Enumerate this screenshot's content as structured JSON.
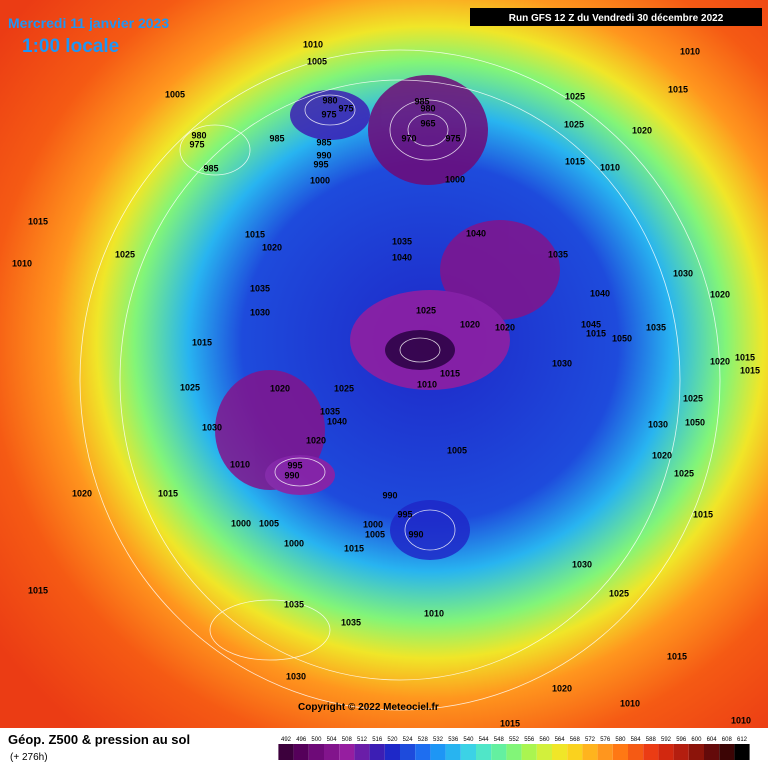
{
  "header": {
    "date": "Mercredi 11 janvier 2023",
    "time": "1:00 locale",
    "run": "Run GFS 12 Z du Vendredi 30 décembre 2022"
  },
  "footer": {
    "title": "Géop. Z500 & pression au sol",
    "lead": "(+ 276h)",
    "copyright": "Copyright © 2022 Meteociel.fr"
  },
  "scale": {
    "values": [
      492,
      496,
      500,
      504,
      508,
      512,
      516,
      520,
      524,
      528,
      532,
      536,
      540,
      544,
      548,
      552,
      556,
      560,
      564,
      568,
      572,
      576,
      580,
      584,
      588,
      592,
      596,
      600,
      604,
      608,
      612
    ],
    "colors": [
      "#3c003c",
      "#55005a",
      "#6e0a78",
      "#82148c",
      "#961ea0",
      "#6a1ea8",
      "#3c1eb4",
      "#1e28c8",
      "#1e4bdc",
      "#1e6ef0",
      "#1e96f5",
      "#28b4f0",
      "#3cd2e6",
      "#50e6c8",
      "#64f0a0",
      "#82f578",
      "#aaf550",
      "#d2f03c",
      "#f0e628",
      "#fad21e",
      "#ffb41e",
      "#ff961e",
      "#ff7814",
      "#f55a14",
      "#eb3c14",
      "#d2280f",
      "#b41e0f",
      "#8c140a",
      "#640a0a",
      "#3c0505",
      "#000000"
    ]
  },
  "isobar_labels": [
    1010,
    1005,
    1010,
    1015,
    1005,
    980,
    975,
    975,
    985,
    980,
    965,
    970,
    975,
    1025,
    1025,
    1020,
    980,
    975,
    985,
    985,
    990,
    995,
    985,
    1000,
    1000,
    1015,
    1010,
    1015,
    1010,
    1025,
    1015,
    1020,
    1035,
    1040,
    1040,
    1035,
    1030,
    1035,
    1030,
    1040,
    1020,
    1025,
    1020,
    1020,
    1035,
    1045,
    1015,
    1050,
    1015,
    1015,
    1010,
    1030,
    1020,
    1015,
    1015,
    1025,
    1020,
    1025,
    1035,
    1040,
    1030,
    1020,
    1030,
    1050,
    1025,
    1005,
    1020,
    1010,
    995,
    990,
    1025,
    1020,
    1015,
    990,
    995,
    1000,
    1005,
    1000,
    1005,
    990,
    1015,
    1000,
    1015,
    1030,
    1015,
    1035,
    1025,
    1010,
    1035,
    1015,
    1030,
    1020,
    1010,
    1015,
    1010
  ]
}
